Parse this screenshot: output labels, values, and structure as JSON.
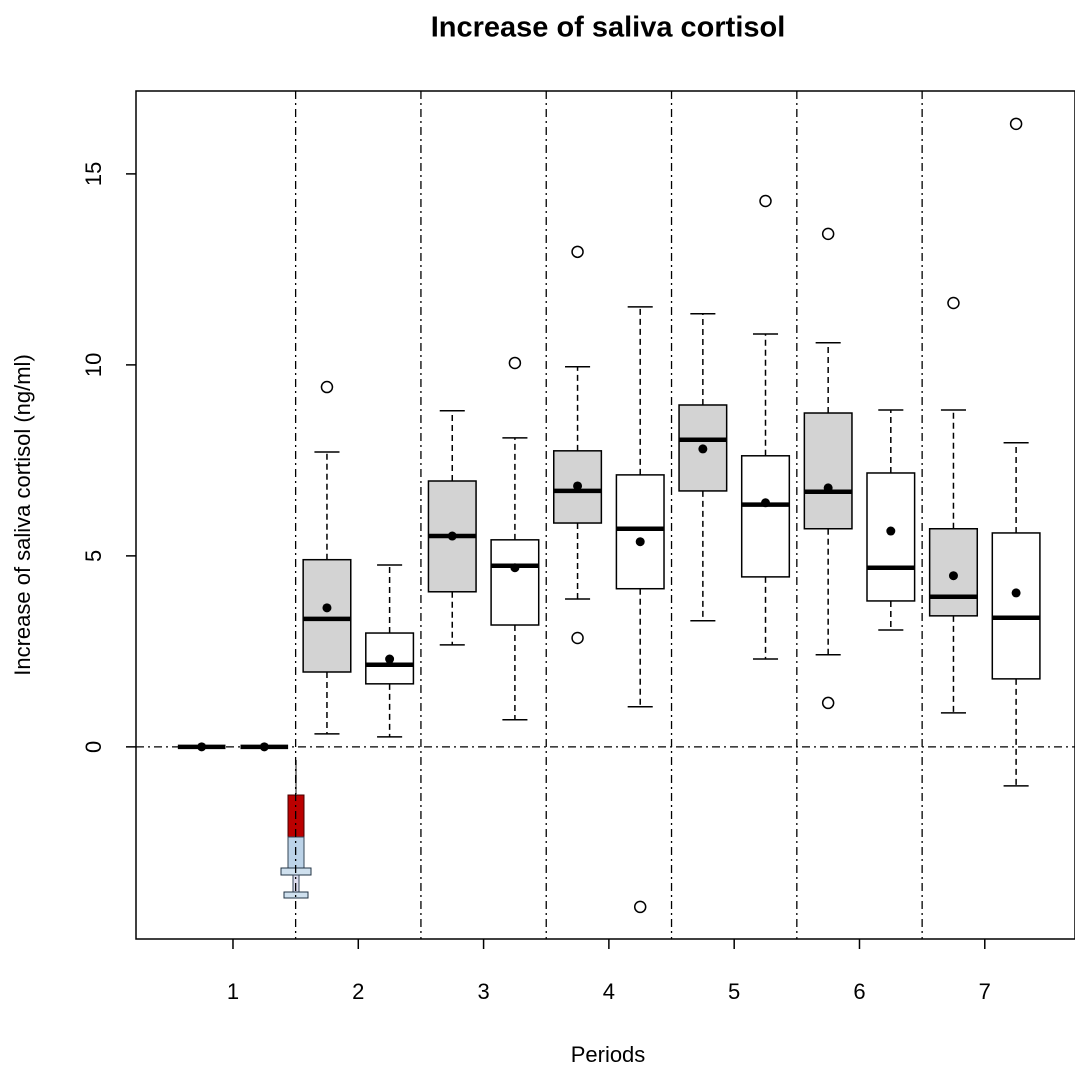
{
  "chart_data": {
    "type": "boxplot",
    "title": "Increase of saliva cortisol",
    "x_label": "Periods",
    "y_label": "Increase of saliva cortisol (ng/ml)",
    "xlim": [
      0.226,
      7.72
    ],
    "xticks": [
      1,
      2,
      3,
      4,
      5,
      6,
      7
    ],
    "ylim": [
      -5.03,
      17.17
    ],
    "yticks": [
      0,
      5,
      10,
      15
    ],
    "vlines": [
      1.5,
      2.5,
      3.5,
      4.5,
      5.5,
      6.5
    ],
    "hline": 0,
    "series": [
      {
        "color": "#d3d3d3",
        "offset": -0.25,
        "boxes": [
          {
            "min": 0,
            "q1": 0,
            "median": 0,
            "q3": 0,
            "max": 0,
            "mean": 0,
            "outliers": []
          },
          {
            "min": 0.34,
            "q1": 1.96,
            "median": 3.35,
            "q3": 4.9,
            "max": 7.72,
            "mean": 3.64,
            "outliers": [
              9.42
            ]
          },
          {
            "min": 2.67,
            "q1": 4.06,
            "median": 5.52,
            "q3": 6.96,
            "max": 8.8,
            "mean": 5.52,
            "outliers": []
          },
          {
            "min": 3.87,
            "q1": 5.86,
            "median": 6.7,
            "q3": 7.75,
            "max": 9.95,
            "mean": 6.83,
            "outliers": [
              12.96,
              2.85
            ]
          },
          {
            "min": 3.3,
            "q1": 6.7,
            "median": 8.04,
            "q3": 8.95,
            "max": 11.34,
            "mean": 7.8,
            "outliers": []
          },
          {
            "min": 2.41,
            "q1": 5.71,
            "median": 6.68,
            "q3": 8.74,
            "max": 10.58,
            "mean": 6.78,
            "outliers": [
              13.43,
              1.15
            ]
          },
          {
            "min": 0.89,
            "q1": 3.43,
            "median": 3.93,
            "q3": 5.71,
            "max": 8.82,
            "mean": 4.48,
            "outliers": [
              11.62
            ]
          }
        ]
      },
      {
        "color": "#ffffff",
        "offset": 0.25,
        "boxes": [
          {
            "min": 0,
            "q1": 0,
            "median": 0,
            "q3": 0,
            "max": 0,
            "mean": 0,
            "outliers": []
          },
          {
            "min": 0.26,
            "q1": 1.65,
            "median": 2.15,
            "q3": 2.98,
            "max": 4.76,
            "mean": 2.3,
            "outliers": []
          },
          {
            "min": 0.71,
            "q1": 3.19,
            "median": 4.74,
            "q3": 5.42,
            "max": 8.09,
            "mean": 4.69,
            "outliers": [
              10.05
            ]
          },
          {
            "min": 1.05,
            "q1": 4.14,
            "median": 5.71,
            "q3": 7.12,
            "max": 11.52,
            "mean": 5.37,
            "outliers": [
              -4.19
            ]
          },
          {
            "min": 2.3,
            "q1": 4.45,
            "median": 6.34,
            "q3": 7.62,
            "max": 10.81,
            "mean": 6.39,
            "outliers": [
              14.29
            ]
          },
          {
            "min": 3.06,
            "q1": 3.82,
            "median": 4.69,
            "q3": 7.17,
            "max": 8.82,
            "mean": 5.65,
            "outliers": []
          },
          {
            "min": -1.02,
            "q1": 1.78,
            "median": 3.38,
            "q3": 5.6,
            "max": 7.96,
            "mean": 4.03,
            "outliers": [
              16.31
            ]
          }
        ]
      }
    ]
  }
}
